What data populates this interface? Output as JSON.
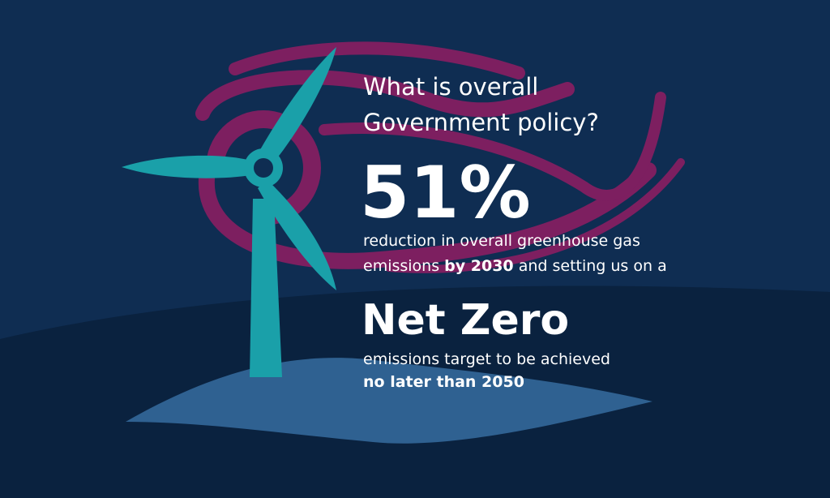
{
  "question": [
    "What is overall",
    "Government policy?"
  ],
  "headline": "51%",
  "detail": {
    "line1": "reduction in overall greenhouse gas",
    "line2_start": "emissions ",
    "line2_bold": "by 2030",
    "line2_end": " and setting us on a"
  },
  "target": "Net Zero",
  "target_detail": {
    "line1": "emissions target to be achieved",
    "line2_bold": "no later than 2050"
  }
}
